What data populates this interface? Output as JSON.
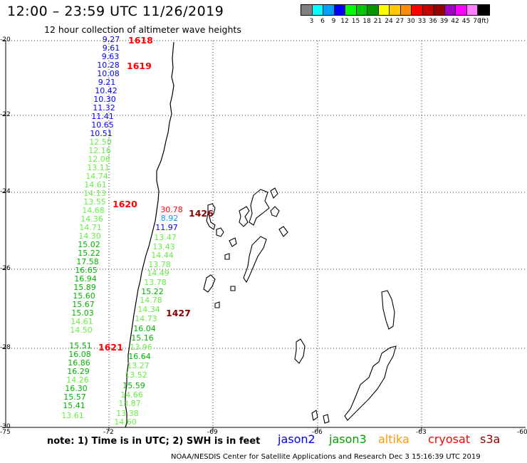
{
  "header": {
    "title": "12:00 – 23:59 UTC 11/26/2019",
    "subtitle": "12 hour collection of altimeter wave heights"
  },
  "legend": {
    "colors": [
      "#808080",
      "#00ffff",
      "#00a0ff",
      "#0000ff",
      "#00ff00",
      "#00c800",
      "#009600",
      "#ffff00",
      "#ffc800",
      "#ff8c00",
      "#ff0000",
      "#c80000",
      "#960000",
      "#a000c8",
      "#ff00ff",
      "#ff80ff",
      "#000000"
    ],
    "labels": [
      "3",
      "6",
      "9",
      "12",
      "15",
      "18",
      "21",
      "24",
      "27",
      "30",
      "33",
      "36",
      "39",
      "42",
      "45",
      "70",
      "(ft)"
    ]
  },
  "axes": {
    "y_ticks": [
      "-20",
      "-22",
      "-24",
      "-26",
      "-28",
      "-30"
    ],
    "x_ticks": [
      "-75",
      "-72",
      "-69",
      "-66",
      "-63",
      "-60"
    ]
  },
  "wave_values": [
    {
      "t": "9.27",
      "c": "#0000ff"
    },
    {
      "t": "9.61",
      "c": "#0000ff"
    },
    {
      "t": "9.63",
      "c": "#0000ff"
    },
    {
      "t": "10.28",
      "c": "#0000ff"
    },
    {
      "t": "10.08",
      "c": "#0000ff"
    },
    {
      "t": "9.21",
      "c": "#0000ff"
    },
    {
      "t": "10.42",
      "c": "#0000ff"
    },
    {
      "t": "10.30",
      "c": "#0000ff"
    },
    {
      "t": "11.32",
      "c": "#0000ff"
    },
    {
      "t": "11.41",
      "c": "#0000ff"
    },
    {
      "t": "10.65",
      "c": "#0000ff"
    },
    {
      "t": "10.51",
      "c": "#0000ff"
    },
    {
      "t": "12.50",
      "c": "#66ee44"
    },
    {
      "t": "12.16",
      "c": "#66ee44"
    },
    {
      "t": "12.06",
      "c": "#66ee44"
    },
    {
      "t": "13.11",
      "c": "#66ee44"
    },
    {
      "t": "14.74",
      "c": "#66ee44"
    },
    {
      "t": "14.61",
      "c": "#66ee44"
    },
    {
      "t": "14.13",
      "c": "#66ee44"
    },
    {
      "t": "13.55",
      "c": "#66ee44"
    },
    {
      "t": "14.68",
      "c": "#66ee44"
    },
    {
      "t": "14.36",
      "c": "#66ee44"
    },
    {
      "t": "14.71",
      "c": "#66ee44"
    },
    {
      "t": "14.30",
      "c": "#66ee44"
    },
    {
      "t": "15.02",
      "c": "#00b400"
    },
    {
      "t": "15.22",
      "c": "#00b400"
    },
    {
      "t": "17.58",
      "c": "#00b400"
    },
    {
      "t": "16.65",
      "c": "#00b400"
    },
    {
      "t": "16.94",
      "c": "#00b400"
    },
    {
      "t": "15.89",
      "c": "#00b400"
    },
    {
      "t": "15.60",
      "c": "#00b400"
    },
    {
      "t": "15.67",
      "c": "#00b400"
    },
    {
      "t": "15.03",
      "c": "#00b400"
    },
    {
      "t": "14.61",
      "c": "#66ee44"
    },
    {
      "t": "14.50",
      "c": "#66ee44"
    },
    {
      "t": "15.51",
      "c": "#00b400"
    },
    {
      "t": "16.08",
      "c": "#00b400"
    },
    {
      "t": "16.86",
      "c": "#00b400"
    },
    {
      "t": "16.29",
      "c": "#00b400"
    },
    {
      "t": "14.26",
      "c": "#66ee44"
    },
    {
      "t": "16.30",
      "c": "#00b400"
    },
    {
      "t": "15.57",
      "c": "#00b400"
    },
    {
      "t": "15.41",
      "c": "#00b400"
    },
    {
      "t": "13.61",
      "c": "#66ee44"
    },
    {
      "t": "30.78",
      "c": "#ff0000"
    },
    {
      "t": "8.92",
      "c": "#00a0ff"
    },
    {
      "t": "11.97",
      "c": "#0000ff"
    },
    {
      "t": "13.47",
      "c": "#66ee44"
    },
    {
      "t": "13.43",
      "c": "#66ee44"
    },
    {
      "t": "14.44",
      "c": "#66ee44"
    },
    {
      "t": "13.78",
      "c": "#66ee44"
    },
    {
      "t": "14.49",
      "c": "#66ee44"
    },
    {
      "t": "13.78",
      "c": "#66ee44"
    },
    {
      "t": "15.22",
      "c": "#00b400"
    },
    {
      "t": "14.78",
      "c": "#66ee44"
    },
    {
      "t": "14.34",
      "c": "#66ee44"
    },
    {
      "t": "14.73",
      "c": "#66ee44"
    },
    {
      "t": "16.04",
      "c": "#00b400"
    },
    {
      "t": "15.16",
      "c": "#00b400"
    },
    {
      "t": "13.96",
      "c": "#66ee44"
    },
    {
      "t": "16.64",
      "c": "#00b400"
    },
    {
      "t": "13.27",
      "c": "#66ee44"
    },
    {
      "t": "13.52",
      "c": "#66ee44"
    },
    {
      "t": "15.59",
      "c": "#00b400"
    },
    {
      "t": "14.66",
      "c": "#66ee44"
    },
    {
      "t": "13.87",
      "c": "#66ee44"
    },
    {
      "t": "13.38",
      "c": "#66ee44"
    },
    {
      "t": "14.60",
      "c": "#66ee44"
    }
  ],
  "pass_labels": [
    {
      "t": "1618",
      "c": "#ff0000"
    },
    {
      "t": "1619",
      "c": "#ff0000"
    },
    {
      "t": "1620",
      "c": "#ff0000"
    },
    {
      "t": "1621",
      "c": "#ff0000"
    },
    {
      "t": "1426",
      "c": "#8b0000"
    },
    {
      "t": "1427",
      "c": "#8b0000"
    }
  ],
  "footer": {
    "note": "note:  1) Time is in UTC;  2) SWH is in feet",
    "satellites": [
      {
        "name": "jason2",
        "color": "#0000ff"
      },
      {
        "name": "jason3",
        "color": "#00a000"
      },
      {
        "name": "altika",
        "color": "#ff9900"
      },
      {
        "name": "cryosat",
        "color": "#ff0000"
      },
      {
        "name": "s3a",
        "color": "#8b0000"
      }
    ],
    "credit": "NOAA/NESDIS Center for Satellite Applications and Research    Dec  3 15:16:39 UTC 2019"
  }
}
